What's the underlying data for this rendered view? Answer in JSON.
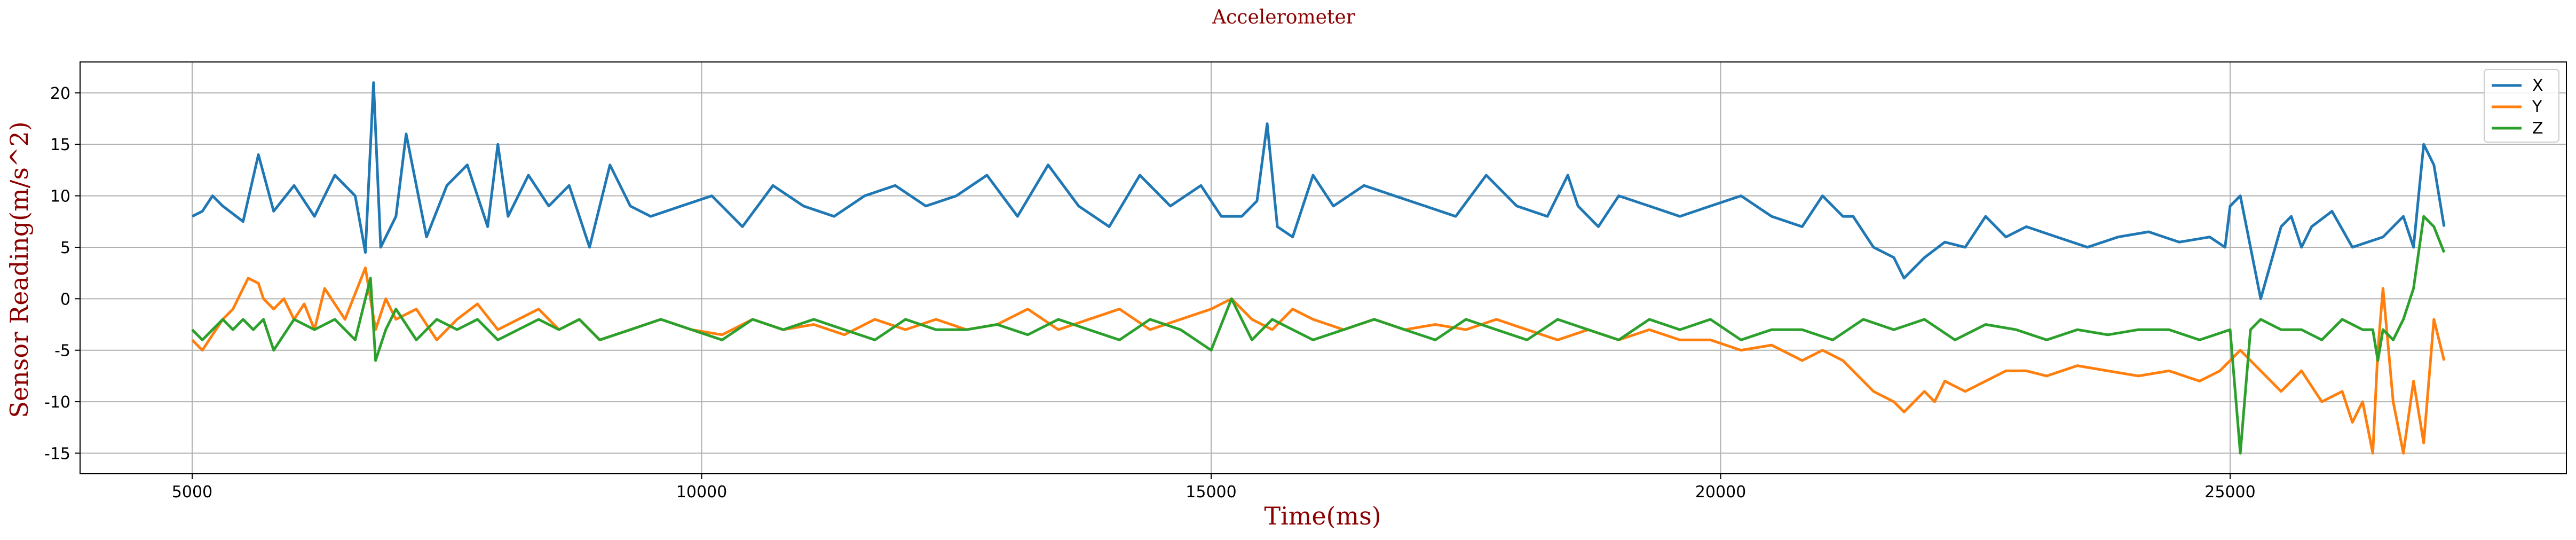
{
  "chart_data": {
    "type": "line",
    "title": "Accelerometer",
    "xlabel": "Time(ms)",
    "ylabel": "Sensor Reading(m/s^2)",
    "xlim": [
      3900,
      28300
    ],
    "ylim": [
      -17,
      23
    ],
    "x_ticks": [
      5000,
      10000,
      15000,
      20000,
      25000
    ],
    "y_ticks": [
      -15,
      -10,
      -5,
      0,
      5,
      10,
      15,
      20
    ],
    "grid": true,
    "legend_position": "top-right",
    "series": [
      {
        "name": "X",
        "color": "#1f77b4",
        "x": [
          5000,
          5100,
          5200,
          5300,
          5500,
          5650,
          5800,
          6000,
          6200,
          6400,
          6600,
          6700,
          6780,
          6850,
          7000,
          7100,
          7300,
          7500,
          7700,
          7900,
          8000,
          8100,
          8300,
          8500,
          8700,
          8900,
          9100,
          9300,
          9500,
          9800,
          10100,
          10400,
          10700,
          11000,
          11300,
          11600,
          11900,
          12200,
          12500,
          12800,
          13100,
          13400,
          13700,
          14000,
          14300,
          14600,
          14900,
          15100,
          15300,
          15450,
          15550,
          15650,
          15800,
          16000,
          16200,
          16500,
          16800,
          17100,
          17400,
          17700,
          18000,
          18300,
          18500,
          18600,
          18800,
          19000,
          19300,
          19600,
          19900,
          20200,
          20500,
          20800,
          21000,
          21200,
          21300,
          21500,
          21700,
          21800,
          22000,
          22200,
          22400,
          22600,
          22800,
          23000,
          23300,
          23600,
          23900,
          24200,
          24500,
          24800,
          24950,
          25000,
          25100,
          25300,
          25500,
          25600,
          25700,
          25800,
          26000,
          26200,
          26500,
          26700,
          26800,
          26900,
          27000,
          27100
        ],
        "y": [
          8,
          8.5,
          10,
          9,
          7.5,
          14,
          8.5,
          11,
          8,
          12,
          10,
          4.5,
          21,
          5,
          8,
          16,
          6,
          11,
          13,
          7,
          15,
          8,
          12,
          9,
          11,
          5,
          13,
          9,
          8,
          9,
          10,
          7,
          11,
          9,
          8,
          10,
          11,
          9,
          10,
          12,
          8,
          13,
          9,
          7,
          12,
          9,
          11,
          8,
          8,
          9.5,
          17,
          7,
          6,
          12,
          9,
          11,
          10,
          9,
          8,
          12,
          9,
          8,
          12,
          9,
          7,
          10,
          9,
          8,
          9,
          10,
          8,
          7,
          10,
          8,
          8,
          5,
          4,
          2,
          4,
          5.5,
          5,
          8,
          6,
          7,
          6,
          5,
          6,
          6.5,
          5.5,
          6,
          5,
          9,
          10,
          0,
          7,
          8,
          5,
          7,
          8.5,
          5,
          6,
          8,
          5,
          15,
          13,
          7
        ]
      },
      {
        "name": "Y",
        "color": "#ff7f0e",
        "x": [
          5000,
          5100,
          5200,
          5300,
          5400,
          5500,
          5550,
          5650,
          5700,
          5800,
          5900,
          6000,
          6100,
          6200,
          6300,
          6500,
          6700,
          6800,
          6900,
          7000,
          7200,
          7400,
          7600,
          7800,
          8000,
          8200,
          8400,
          8600,
          8800,
          9000,
          9300,
          9600,
          9900,
          10200,
          10500,
          10800,
          11100,
          11400,
          11700,
          12000,
          12300,
          12600,
          12900,
          13200,
          13500,
          13800,
          14100,
          14400,
          14700,
          15000,
          15200,
          15400,
          15600,
          15800,
          16000,
          16300,
          16600,
          16900,
          17200,
          17500,
          17800,
          18100,
          18400,
          18700,
          19000,
          19300,
          19600,
          19900,
          20200,
          20500,
          20800,
          21000,
          21200,
          21400,
          21500,
          21700,
          21800,
          22000,
          22100,
          22200,
          22400,
          22600,
          22800,
          23000,
          23200,
          23500,
          23800,
          24100,
          24400,
          24700,
          24900,
          25000,
          25100,
          25300,
          25500,
          25700,
          25900,
          26100,
          26200,
          26300,
          26400,
          26450,
          26500,
          26600,
          26700,
          26800,
          26900,
          27000,
          27100
        ],
        "y": [
          -4,
          -5,
          -3.5,
          -2,
          -1,
          1,
          2,
          1.5,
          0,
          -1,
          0,
          -2,
          -0.5,
          -3,
          1,
          -2,
          3,
          -3,
          0,
          -2,
          -1,
          -4,
          -2,
          -0.5,
          -3,
          -2,
          -1,
          -3,
          -2,
          -4,
          -3,
          -2,
          -3,
          -3.5,
          -2,
          -3,
          -2.5,
          -3.5,
          -2,
          -3,
          -2,
          -3,
          -2.5,
          -1,
          -3,
          -2,
          -1,
          -3,
          -2,
          -1,
          0,
          -2,
          -3,
          -1,
          -2,
          -3,
          -2,
          -3,
          -2.5,
          -3,
          -2,
          -3,
          -4,
          -3,
          -4,
          -3,
          -4,
          -4,
          -5,
          -4.5,
          -6,
          -5,
          -6,
          -8,
          -9,
          -10,
          -11,
          -9,
          -10,
          -8,
          -9,
          -8,
          -7,
          -7,
          -7.5,
          -6.5,
          -7,
          -7.5,
          -7,
          -8,
          -7,
          -6,
          -5,
          -7,
          -9,
          -7,
          -10,
          -9,
          -12,
          -10,
          -15,
          -5,
          1,
          -10,
          -15,
          -8,
          -14,
          -2,
          -6
        ]
      },
      {
        "name": "Z",
        "color": "#2ca02c",
        "x": [
          5000,
          5100,
          5200,
          5300,
          5400,
          5500,
          5600,
          5700,
          5800,
          6000,
          6200,
          6400,
          6600,
          6750,
          6800,
          6900,
          7000,
          7200,
          7400,
          7600,
          7800,
          8000,
          8200,
          8400,
          8600,
          8800,
          9000,
          9300,
          9600,
          9900,
          10200,
          10500,
          10800,
          11100,
          11400,
          11700,
          12000,
          12300,
          12600,
          12900,
          13200,
          13500,
          13800,
          14100,
          14400,
          14700,
          15000,
          15200,
          15400,
          15600,
          15800,
          16000,
          16300,
          16600,
          16900,
          17200,
          17500,
          17800,
          18100,
          18400,
          18700,
          19000,
          19300,
          19600,
          19900,
          20200,
          20500,
          20800,
          21100,
          21400,
          21700,
          22000,
          22300,
          22600,
          22900,
          23200,
          23500,
          23800,
          24100,
          24400,
          24700,
          25000,
          25100,
          25200,
          25300,
          25500,
          25700,
          25900,
          26100,
          26300,
          26400,
          26450,
          26500,
          26600,
          26700,
          26800,
          26900,
          27000,
          27100
        ],
        "y": [
          -3,
          -4,
          -3,
          -2,
          -3,
          -2,
          -3,
          -2,
          -5,
          -2,
          -3,
          -2,
          -4,
          2,
          -6,
          -3,
          -1,
          -4,
          -2,
          -3,
          -2,
          -4,
          -3,
          -2,
          -3,
          -2,
          -4,
          -3,
          -2,
          -3,
          -4,
          -2,
          -3,
          -2,
          -3,
          -4,
          -2,
          -3,
          -3,
          -2.5,
          -3.5,
          -2,
          -3,
          -4,
          -2,
          -3,
          -5,
          0,
          -4,
          -2,
          -3,
          -4,
          -3,
          -2,
          -3,
          -4,
          -2,
          -3,
          -4,
          -2,
          -3,
          -4,
          -2,
          -3,
          -2,
          -4,
          -3,
          -3,
          -4,
          -2,
          -3,
          -2,
          -4,
          -2.5,
          -3,
          -4,
          -3,
          -3.5,
          -3,
          -3,
          -4,
          -3,
          -15,
          -3,
          -2,
          -3,
          -3,
          -4,
          -2,
          -3,
          -3,
          -6,
          -3,
          -4,
          -2,
          1,
          8,
          7,
          4.5
        ]
      }
    ]
  }
}
